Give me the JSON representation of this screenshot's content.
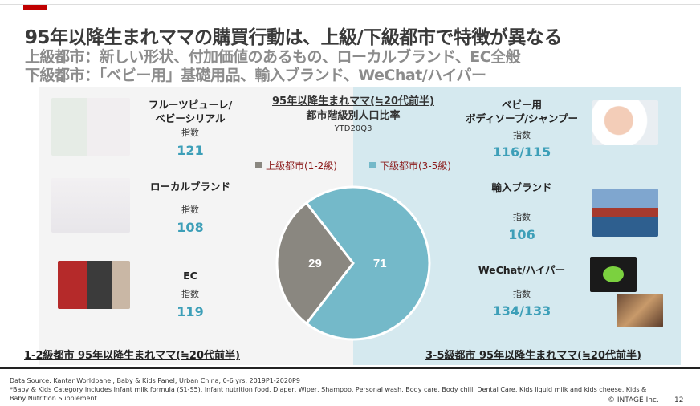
{
  "header": {
    "title": "95年以降生まれママの購買行動は、上級/下級都市で特徴が異なる",
    "subtitle1": "上級都市：新しい形状、付加価値のあるもの、ローカルブランド、EC全般",
    "subtitle2": "下級都市：「ベビー用」基礎用品、輸入ブランド、WeChat/ハイパー"
  },
  "chart_data": {
    "type": "pie",
    "title_line1": "95年以降生まれママ(≒20代前半)",
    "title_line2": "都市階級別人口比率",
    "period": "YTD20Q3",
    "categories": [
      "上級都市(1-2級)",
      "下級都市(3-5級)"
    ],
    "values": [
      29,
      71
    ],
    "colors": [
      "#8a8780",
      "#74b9c9"
    ],
    "legend": "top"
  },
  "left": {
    "items": [
      {
        "label": "フルーツピューレ/\nベビーシリアル",
        "index_label": "指数",
        "value": "121",
        "image": "fruit-puree-products"
      },
      {
        "label": "ローカルブランド",
        "index_label": "指数",
        "value": "108",
        "image": "local-brand-products"
      },
      {
        "label": "EC",
        "index_label": "指数",
        "value": "119",
        "image": "ecommerce-phone"
      }
    ],
    "footer_label": "1-2級都市 95年以降生まれママ(≒20代前半)"
  },
  "right": {
    "items": [
      {
        "label": "ベビー用\nボディソープ/シャンプー",
        "index_label": "指数",
        "value": "116/115",
        "image": "baby-bath"
      },
      {
        "label": "輸入ブランド",
        "index_label": "指数",
        "value": "106",
        "image": "cargo-ship"
      },
      {
        "label": "WeChat/ハイパー",
        "index_label": "指数",
        "value": "134/133",
        "image": "wechat-logo-and-hypermarket"
      }
    ],
    "footer_label": "3-5級都市 95年以降生まれママ(≒20代前半)"
  },
  "footer": {
    "source": "Data Source: Kantar Worldpanel, Baby & Kids Panel, Urban China, 0-6 yrs, 2019P1-2020P9",
    "note1": "*Baby & Kids Category includes Infant milk formula (S1-S5), Infant nutrition food, Diaper, Wiper, Shampoo, Personal wash, Body care, Body chill, Dental Care, Kids liquid milk and kids cheese, Kids &",
    "note2": "Baby Nutrition Supplement",
    "copyright": "© INTAGE Inc.",
    "page": "12"
  }
}
